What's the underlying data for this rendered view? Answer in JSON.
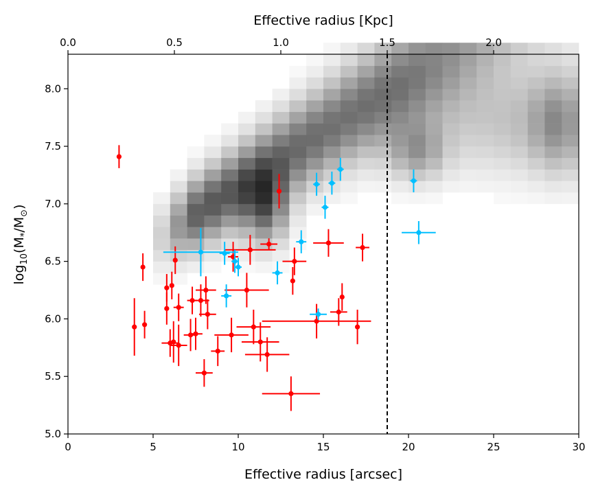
{
  "chart_data": {
    "type": "scatter",
    "xlabel": "Effective radius [arcsec]",
    "ylabel_parts": {
      "base": "log",
      "sub": "10",
      "rest": "(M",
      "star": "*",
      "slash": "/M",
      "sun": "⊙",
      "close": ")"
    },
    "top_xlabel": "Effective radius [Kpc]",
    "xlim": [
      0,
      30
    ],
    "ylim": [
      5.0,
      8.3
    ],
    "xticks": [
      0,
      5,
      10,
      15,
      20,
      25,
      30
    ],
    "xtick_labels": [
      "0",
      "5",
      "10",
      "15",
      "20",
      "25",
      "30"
    ],
    "yticks": [
      5.0,
      5.5,
      6.0,
      6.5,
      7.0,
      7.5,
      8.0
    ],
    "ytick_labels": [
      "5.0",
      "5.5",
      "6.0",
      "6.5",
      "7.0",
      "7.5",
      "8.0"
    ],
    "top_xticks_kpc": [
      0.0,
      0.5,
      1.0,
      1.5,
      2.0
    ],
    "top_xtick_labels": [
      "0.0",
      "0.5",
      "1.0",
      "1.5",
      "2.0"
    ],
    "arcsec_per_kpc": 12.5,
    "vline_x": 18.75,
    "colors": {
      "red": "#ff0000",
      "blue": "#00bfff",
      "vline": "#000000"
    },
    "series": [
      {
        "name": "red",
        "points": [
          {
            "x": 3.0,
            "y": 7.41,
            "xerr": 0,
            "yerr": 0.1
          },
          {
            "x": 3.9,
            "y": 5.93,
            "xerr": 0,
            "yerr": 0.25
          },
          {
            "x": 4.4,
            "y": 6.45,
            "xerr": 0,
            "yerr": 0.12
          },
          {
            "x": 4.5,
            "y": 5.95,
            "xerr": 0,
            "yerr": 0.12
          },
          {
            "x": 5.8,
            "y": 6.27,
            "xerr": 0,
            "yerr": 0.12
          },
          {
            "x": 5.8,
            "y": 6.09,
            "xerr": 0,
            "yerr": 0.14
          },
          {
            "x": 6.0,
            "y": 5.79,
            "xerr": 0.5,
            "yerr": 0.12
          },
          {
            "x": 6.1,
            "y": 6.29,
            "xerr": 0,
            "yerr": 0.12
          },
          {
            "x": 6.2,
            "y": 5.8,
            "xerr": 0,
            "yerr": 0.18
          },
          {
            "x": 6.3,
            "y": 6.51,
            "xerr": 0,
            "yerr": 0.12
          },
          {
            "x": 6.5,
            "y": 6.1,
            "xerr": 0.3,
            "yerr": 0.12
          },
          {
            "x": 6.5,
            "y": 5.77,
            "xerr": 0.5,
            "yerr": 0.18
          },
          {
            "x": 7.2,
            "y": 5.86,
            "xerr": 0.4,
            "yerr": 0.14
          },
          {
            "x": 7.3,
            "y": 6.16,
            "xerr": 0.3,
            "yerr": 0.12
          },
          {
            "x": 7.5,
            "y": 5.87,
            "xerr": 0.4,
            "yerr": 0.14
          },
          {
            "x": 7.8,
            "y": 6.16,
            "xerr": 0.5,
            "yerr": 0.14
          },
          {
            "x": 8.0,
            "y": 5.53,
            "xerr": 0.5,
            "yerr": 0.12
          },
          {
            "x": 8.1,
            "y": 6.25,
            "xerr": 0.6,
            "yerr": 0.12
          },
          {
            "x": 8.2,
            "y": 6.04,
            "xerr": 0.5,
            "yerr": 0.13
          },
          {
            "x": 8.8,
            "y": 5.72,
            "xerr": 0.4,
            "yerr": 0.13
          },
          {
            "x": 9.6,
            "y": 5.86,
            "xerr": 1.0,
            "yerr": 0.15
          },
          {
            "x": 9.7,
            "y": 6.54,
            "xerr": 0.3,
            "yerr": 0.13
          },
          {
            "x": 10.5,
            "y": 6.25,
            "xerr": 1.3,
            "yerr": 0.15
          },
          {
            "x": 10.7,
            "y": 6.6,
            "xerr": 1.5,
            "yerr": 0.13
          },
          {
            "x": 10.9,
            "y": 5.93,
            "xerr": 1.0,
            "yerr": 0.15
          },
          {
            "x": 11.3,
            "y": 5.8,
            "xerr": 1.1,
            "yerr": 0.17
          },
          {
            "x": 11.7,
            "y": 5.69,
            "xerr": 1.3,
            "yerr": 0.15
          },
          {
            "x": 11.8,
            "y": 6.65,
            "xerr": 0.5,
            "yerr": 0.05
          },
          {
            "x": 12.4,
            "y": 7.11,
            "xerr": 0,
            "yerr": 0.15
          },
          {
            "x": 13.1,
            "y": 5.35,
            "xerr": 1.7,
            "yerr": 0.15
          },
          {
            "x": 13.2,
            "y": 6.33,
            "xerr": 0,
            "yerr": 0.12
          },
          {
            "x": 13.3,
            "y": 6.5,
            "xerr": 0.7,
            "yerr": 0.12
          },
          {
            "x": 14.6,
            "y": 5.98,
            "xerr": 3.2,
            "yerr": 0.15
          },
          {
            "x": 15.3,
            "y": 6.66,
            "xerr": 0.9,
            "yerr": 0.12
          },
          {
            "x": 15.9,
            "y": 6.06,
            "xerr": 0.5,
            "yerr": 0.12
          },
          {
            "x": 16.1,
            "y": 6.19,
            "xerr": 0,
            "yerr": 0.12
          },
          {
            "x": 17.0,
            "y": 5.93,
            "xerr": 0,
            "yerr": 0.15
          },
          {
            "x": 17.3,
            "y": 6.62,
            "xerr": 0.4,
            "yerr": 0.12
          }
        ]
      },
      {
        "name": "blue",
        "points": [
          {
            "x": 7.8,
            "y": 6.58,
            "xerr": 2.2,
            "yerr": 0.21
          },
          {
            "x": 9.2,
            "y": 6.57,
            "xerr": 0.3,
            "yerr": 0.1
          },
          {
            "x": 9.3,
            "y": 6.2,
            "xerr": 0.3,
            "yerr": 0.1
          },
          {
            "x": 9.8,
            "y": 6.5,
            "xerr": 0.2,
            "yerr": 0.1
          },
          {
            "x": 10.0,
            "y": 6.45,
            "xerr": 0.2,
            "yerr": 0.08
          },
          {
            "x": 12.3,
            "y": 6.4,
            "xerr": 0.3,
            "yerr": 0.1
          },
          {
            "x": 13.7,
            "y": 6.67,
            "xerr": 0.3,
            "yerr": 0.1
          },
          {
            "x": 14.6,
            "y": 7.17,
            "xerr": 0.2,
            "yerr": 0.1
          },
          {
            "x": 14.7,
            "y": 6.04,
            "xerr": 0.5,
            "yerr": 0.05
          },
          {
            "x": 15.1,
            "y": 6.97,
            "xerr": 0.2,
            "yerr": 0.1
          },
          {
            "x": 15.5,
            "y": 7.18,
            "xerr": 0.2,
            "yerr": 0.1
          },
          {
            "x": 16.0,
            "y": 7.3,
            "xerr": 0.2,
            "yerr": 0.1
          },
          {
            "x": 20.3,
            "y": 7.2,
            "xerr": 0.2,
            "yerr": 0.1
          },
          {
            "x": 20.6,
            "y": 6.75,
            "xerr": 1.0,
            "yerr": 0.1
          }
        ]
      }
    ],
    "density_background": {
      "description": "grayscale 2D histogram of model distribution",
      "x_bin": 1.0,
      "y_bin": 0.1
    }
  }
}
